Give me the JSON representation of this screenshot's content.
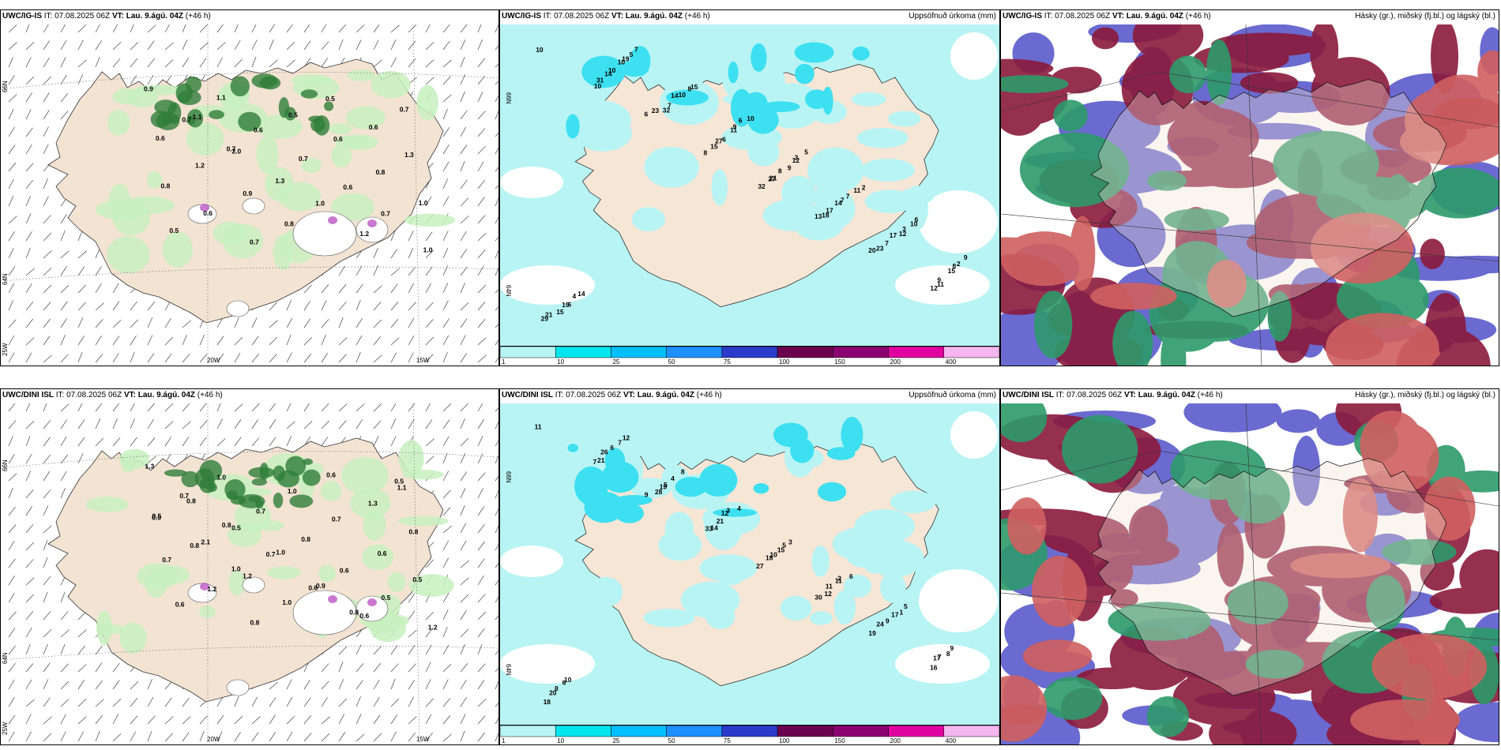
{
  "panels": [
    {
      "id": "top-left",
      "model": "UWC/IG-IS",
      "it_label": "IT:",
      "it_value": "07.08.2025 06Z",
      "vt_label": "VT:",
      "vt_value": "Lau. 9.ágú. 04Z",
      "lead": "(+46 h)",
      "right_title": "",
      "type": "clouds-wind",
      "grid_labels": [
        "66N",
        "64N",
        "25W",
        "20W",
        "15W"
      ],
      "values": [
        "0.9",
        "1.1",
        "2.0",
        "1.3",
        "1.0",
        "1.2",
        "0.7",
        "0.6",
        "1.2",
        "0.9",
        "0.8",
        "0.5",
        "0.6",
        "1.3",
        "0.8",
        "0.6",
        "0.7",
        "0.5",
        "0.6",
        "0.8",
        "1.0",
        "0.5",
        "1.1",
        "0.6",
        "0.7",
        "0.6",
        "0.7",
        "1.0",
        "0.7",
        "0.7"
      ]
    },
    {
      "id": "top-middle",
      "model": "UWC/IG-IS",
      "it_label": "IT:",
      "it_value": "07.08.2025 06Z",
      "vt_label": "VT:",
      "vt_value": "Lau. 9.ágú. 04Z",
      "lead": "(+46 h)",
      "right_title": "Uppsöfnuð úrkoma (mm)",
      "type": "precip",
      "grid_labels": [
        "66N",
        "64N"
      ],
      "values": [
        "10",
        "10",
        "6",
        "8",
        "32",
        "13",
        "20",
        "12",
        "29",
        "31",
        "23",
        "15",
        "27",
        "18",
        "23",
        "11",
        "21",
        "14",
        "32",
        "27",
        "21",
        "17",
        "7",
        "9",
        "15",
        "10",
        "7",
        "6",
        "8",
        "14",
        "17",
        "15",
        "19",
        "10",
        "14",
        "11",
        "9",
        "7",
        "12",
        "8",
        "6",
        "19",
        "10",
        "9",
        "12",
        "7",
        "3",
        "2",
        "4",
        "5",
        "8",
        "6",
        "3",
        "11",
        "10",
        "9",
        "14",
        "7",
        "15",
        "10",
        "5",
        "2",
        "6"
      ]
    },
    {
      "id": "top-right",
      "model": "UWC/IG-IS",
      "it_label": "IT:",
      "it_value": "07.08.2025 06Z",
      "vt_label": "VT:",
      "vt_value": "Lau. 9.ágú. 04Z",
      "lead": "(+46 h)",
      "right_title": "Hásky (gr.), miðský (fj.bl.) og lágský (bl.)",
      "type": "cloud-layers",
      "grid_labels": [],
      "values": []
    },
    {
      "id": "bottom-left",
      "model": "UWC/DINI ISL",
      "it_label": "IT:",
      "it_value": "07.08.2025 06Z",
      "vt_label": "VT:",
      "vt_value": "Lau. 9.ágú. 04Z",
      "lead": "(+46 h)",
      "right_title": "",
      "type": "clouds-wind",
      "grid_labels": [
        "66N",
        "64N",
        "25W",
        "20W",
        "15W"
      ],
      "values": [
        "1.3",
        "0.8",
        "0.5",
        "1.0",
        "0.9",
        "0.6",
        "1.1",
        "0.5",
        "2.1",
        "1.2",
        "1.0",
        "0.6",
        "1.3",
        "0.8",
        "0.7",
        "1.2",
        "0.8",
        "1.0",
        "0.7",
        "0.6",
        "0.5",
        "0.6",
        "1.0",
        "0.7",
        "0.8",
        "0.6",
        "0.5",
        "1.2",
        "0.7",
        "0.8",
        "0.7",
        "0.6",
        "0.8",
        "0.5",
        "0.9",
        "0.8",
        "1.0"
      ]
    },
    {
      "id": "bottom-middle",
      "model": "UWC/DINI ISL",
      "it_label": "IT:",
      "it_value": "07.08.2025 06Z",
      "vt_label": "VT:",
      "vt_value": "Lau. 9.ágú. 04Z",
      "lead": "(+46 h)",
      "right_title": "Uppsöfnuð úrkoma (mm)",
      "type": "precip",
      "grid_labels": [
        "66N",
        "64N"
      ],
      "values": [
        "11",
        "7",
        "9",
        "33",
        "27",
        "30",
        "19",
        "16",
        "18",
        "21",
        "28",
        "14",
        "18",
        "12",
        "24",
        "17",
        "20",
        "26",
        "19",
        "21",
        "10",
        "11",
        "9",
        "7",
        "8",
        "6",
        "5",
        "12",
        "15",
        "11",
        "17",
        "8",
        "6",
        "7",
        "4",
        "3",
        "5",
        "2",
        "1",
        "9",
        "10",
        "12",
        "8",
        "4",
        "3",
        "6",
        "5"
      ]
    },
    {
      "id": "bottom-right",
      "model": "UWC/DINI ISL",
      "it_label": "IT:",
      "it_value": "07.08.2025 06Z",
      "vt_label": "VT:",
      "vt_value": "Lau. 9.ágú. 04Z",
      "lead": "(+46 h)",
      "right_title": "Hásky (gr.), miðský (fj.bl.) og lágský (bl.)",
      "type": "cloud-layers",
      "grid_labels": [],
      "values": []
    }
  ],
  "colorbar": {
    "ticks": [
      "1",
      "10",
      "25",
      "50",
      "75",
      "100",
      "150",
      "200",
      "400"
    ],
    "colors": [
      "#b8f4f4",
      "#00e5ee",
      "#00bfff",
      "#1e90ff",
      "#2a3bcc",
      "#6b0050",
      "#8b0070",
      "#e000a0",
      "#f5b5ee"
    ]
  },
  "colors": {
    "land": "#f3e3d3",
    "sea": "#ffffff",
    "precip_light": "#b8f4f4",
    "precip_mid": "#3de0f0",
    "cloud_light_green": "#c8f0c0",
    "cloud_dark_green": "#2f7d3a",
    "high_cloud": "#2d9a6a",
    "mid_cloud": "#5a5acb",
    "low_cloud": "#8b1a3c"
  }
}
